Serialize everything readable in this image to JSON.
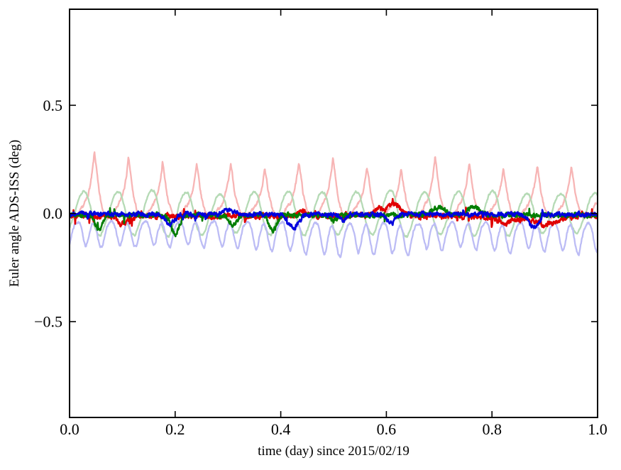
{
  "chart_data": {
    "type": "line",
    "title": "",
    "xlabel": "time (day) since 2015/02/19",
    "ylabel": "Euler angle ADS-ISS (deg)",
    "xlim": [
      0.0,
      1.0
    ],
    "ylim": [
      -0.943,
      0.944
    ],
    "grid": false,
    "legend": null,
    "x_ticks": [
      {
        "value": 0.0,
        "label": "0.0"
      },
      {
        "value": 0.2,
        "label": "0.2"
      },
      {
        "value": 0.4,
        "label": "0.4"
      },
      {
        "value": 0.6,
        "label": "0.6"
      },
      {
        "value": 0.8,
        "label": "0.8"
      },
      {
        "value": 1.0,
        "label": "1.0"
      }
    ],
    "y_ticks": [
      {
        "value": 0.5,
        "label": "0.5"
      },
      {
        "value": 0.0,
        "label": "0.0"
      },
      {
        "value": -0.5,
        "label": "−0.5"
      }
    ],
    "axis_color": "#000000",
    "orbital_cycles_per_day": 15.5,
    "samples": 1500,
    "series": [
      {
        "name": "pale-red-raw",
        "description": "Unfiltered Euler angle 1: sawtooth-like peaks of +0.19 to +0.30 deg once per orbit (~15.5 cycles/day), valleys near -0.02 deg",
        "kind": "periodic",
        "color": "#f7b5b5",
        "width": 2.3,
        "period": 0.064516,
        "phase": 0.011,
        "amp_jitter": 0.22,
        "noise_step": 0.006,
        "noise_smooth": 0.6,
        "seed": 7,
        "keyshape": [
          [
            0.0,
            -0.015
          ],
          [
            0.08,
            -0.005
          ],
          [
            0.16,
            0.012
          ],
          [
            0.24,
            0.03
          ],
          [
            0.32,
            0.052
          ],
          [
            0.38,
            0.075
          ],
          [
            0.44,
            0.11
          ],
          [
            0.49,
            0.15
          ],
          [
            0.53,
            0.195
          ],
          [
            0.56,
            0.235
          ],
          [
            0.59,
            0.205
          ],
          [
            0.62,
            0.17
          ],
          [
            0.66,
            0.12
          ],
          [
            0.7,
            0.08
          ],
          [
            0.75,
            0.045
          ],
          [
            0.8,
            0.018
          ],
          [
            0.86,
            -0.008
          ],
          [
            0.92,
            -0.022
          ],
          [
            1.0,
            -0.015
          ]
        ]
      },
      {
        "name": "pale-green-raw",
        "description": "Unfiltered Euler angle 2: smooth rounded oscillation between about +0.10 and -0.10 deg per orbit",
        "kind": "periodic",
        "color": "#b5dab5",
        "width": 2.3,
        "period": 0.064516,
        "phase": 0.01,
        "amp_jitter": 0.12,
        "noise_step": 0.003,
        "noise_smooth": 0.6,
        "seed": 11,
        "keyshape": [
          [
            0.0,
            0.0
          ],
          [
            0.07,
            0.045
          ],
          [
            0.15,
            0.08
          ],
          [
            0.25,
            0.1
          ],
          [
            0.33,
            0.094
          ],
          [
            0.4,
            0.065
          ],
          [
            0.47,
            0.02
          ],
          [
            0.53,
            -0.03
          ],
          [
            0.6,
            -0.07
          ],
          [
            0.68,
            -0.095
          ],
          [
            0.76,
            -0.1
          ],
          [
            0.84,
            -0.07
          ],
          [
            0.92,
            -0.03
          ],
          [
            1.0,
            0.0
          ]
        ]
      },
      {
        "name": "pale-blue-raw",
        "description": "Unfiltered Euler angle 3: always negative, double dips per orbit between about -0.04 and -0.20 deg",
        "kind": "periodic",
        "color": "#bcbcf5",
        "width": 2.3,
        "period": 0.064516,
        "phase": 0.019,
        "amp_jitter": 0.15,
        "noise_step": 0.004,
        "noise_smooth": 0.6,
        "seed": 13,
        "keyshape": [
          [
            0.0,
            -0.05
          ],
          [
            0.06,
            -0.085
          ],
          [
            0.12,
            -0.14
          ],
          [
            0.18,
            -0.175
          ],
          [
            0.24,
            -0.15
          ],
          [
            0.3,
            -0.095
          ],
          [
            0.36,
            -0.06
          ],
          [
            0.42,
            -0.048
          ],
          [
            0.48,
            -0.075
          ],
          [
            0.54,
            -0.13
          ],
          [
            0.6,
            -0.172
          ],
          [
            0.66,
            -0.185
          ],
          [
            0.72,
            -0.135
          ],
          [
            0.8,
            -0.075
          ],
          [
            0.88,
            -0.048
          ],
          [
            0.94,
            -0.042
          ],
          [
            1.0,
            -0.05
          ]
        ]
      },
      {
        "name": "red-filtered",
        "description": "Filtered Euler angle 1: noisy around -0.01 deg, bump to +0.06 near t=0.62, dips to -0.04 near t=0.82-0.95",
        "kind": "noisy",
        "color": "#e00000",
        "width": 2.6,
        "base": -0.012,
        "noise_step": 0.01,
        "noise_smooth": 0.55,
        "spike_prob": 0.012,
        "spike_amp": 0.028,
        "seed": 3,
        "events": [
          [
            0.1,
            -0.035,
            0.01
          ],
          [
            0.44,
            0.022,
            0.008
          ],
          [
            0.585,
            0.03,
            0.01
          ],
          [
            0.615,
            0.055,
            0.012
          ],
          [
            0.82,
            -0.03,
            0.02
          ],
          [
            0.9,
            -0.038,
            0.025
          ],
          [
            0.975,
            0.012,
            0.008
          ]
        ]
      },
      {
        "name": "green-filtered",
        "description": "Filtered Euler angle 2: noisy around -0.01 deg with dips to -0.09 near t=0.06, 0.20, 0.39 and bumps +0.04 near t=0.70, 0.77",
        "kind": "noisy",
        "color": "#007d00",
        "width": 2.6,
        "base": -0.008,
        "noise_step": 0.009,
        "noise_smooth": 0.5,
        "spike_prob": 0.008,
        "spike_amp": 0.03,
        "seed": 5,
        "events": [
          [
            0.055,
            -0.07,
            0.006
          ],
          [
            0.2,
            -0.088,
            0.007
          ],
          [
            0.31,
            -0.04,
            0.008
          ],
          [
            0.385,
            -0.075,
            0.007
          ],
          [
            0.5,
            -0.022,
            0.006
          ],
          [
            0.7,
            0.036,
            0.012
          ],
          [
            0.765,
            0.042,
            0.01
          ]
        ]
      },
      {
        "name": "blue-filtered",
        "description": "Filtered Euler angle 3: noisy around 0.00 deg with dips to -0.06 near t=0.19, 0.43, 0.61, 0.88",
        "kind": "noisy",
        "color": "#0000dd",
        "width": 2.6,
        "base": -0.004,
        "noise_step": 0.008,
        "noise_smooth": 0.6,
        "spike_prob": 0.006,
        "spike_amp": 0.022,
        "seed": 9,
        "events": [
          [
            0.19,
            -0.048,
            0.008
          ],
          [
            0.3,
            0.02,
            0.01
          ],
          [
            0.425,
            -0.058,
            0.01
          ],
          [
            0.52,
            -0.025,
            0.006
          ],
          [
            0.61,
            -0.038,
            0.008
          ],
          [
            0.88,
            -0.062,
            0.009
          ]
        ]
      }
    ]
  }
}
